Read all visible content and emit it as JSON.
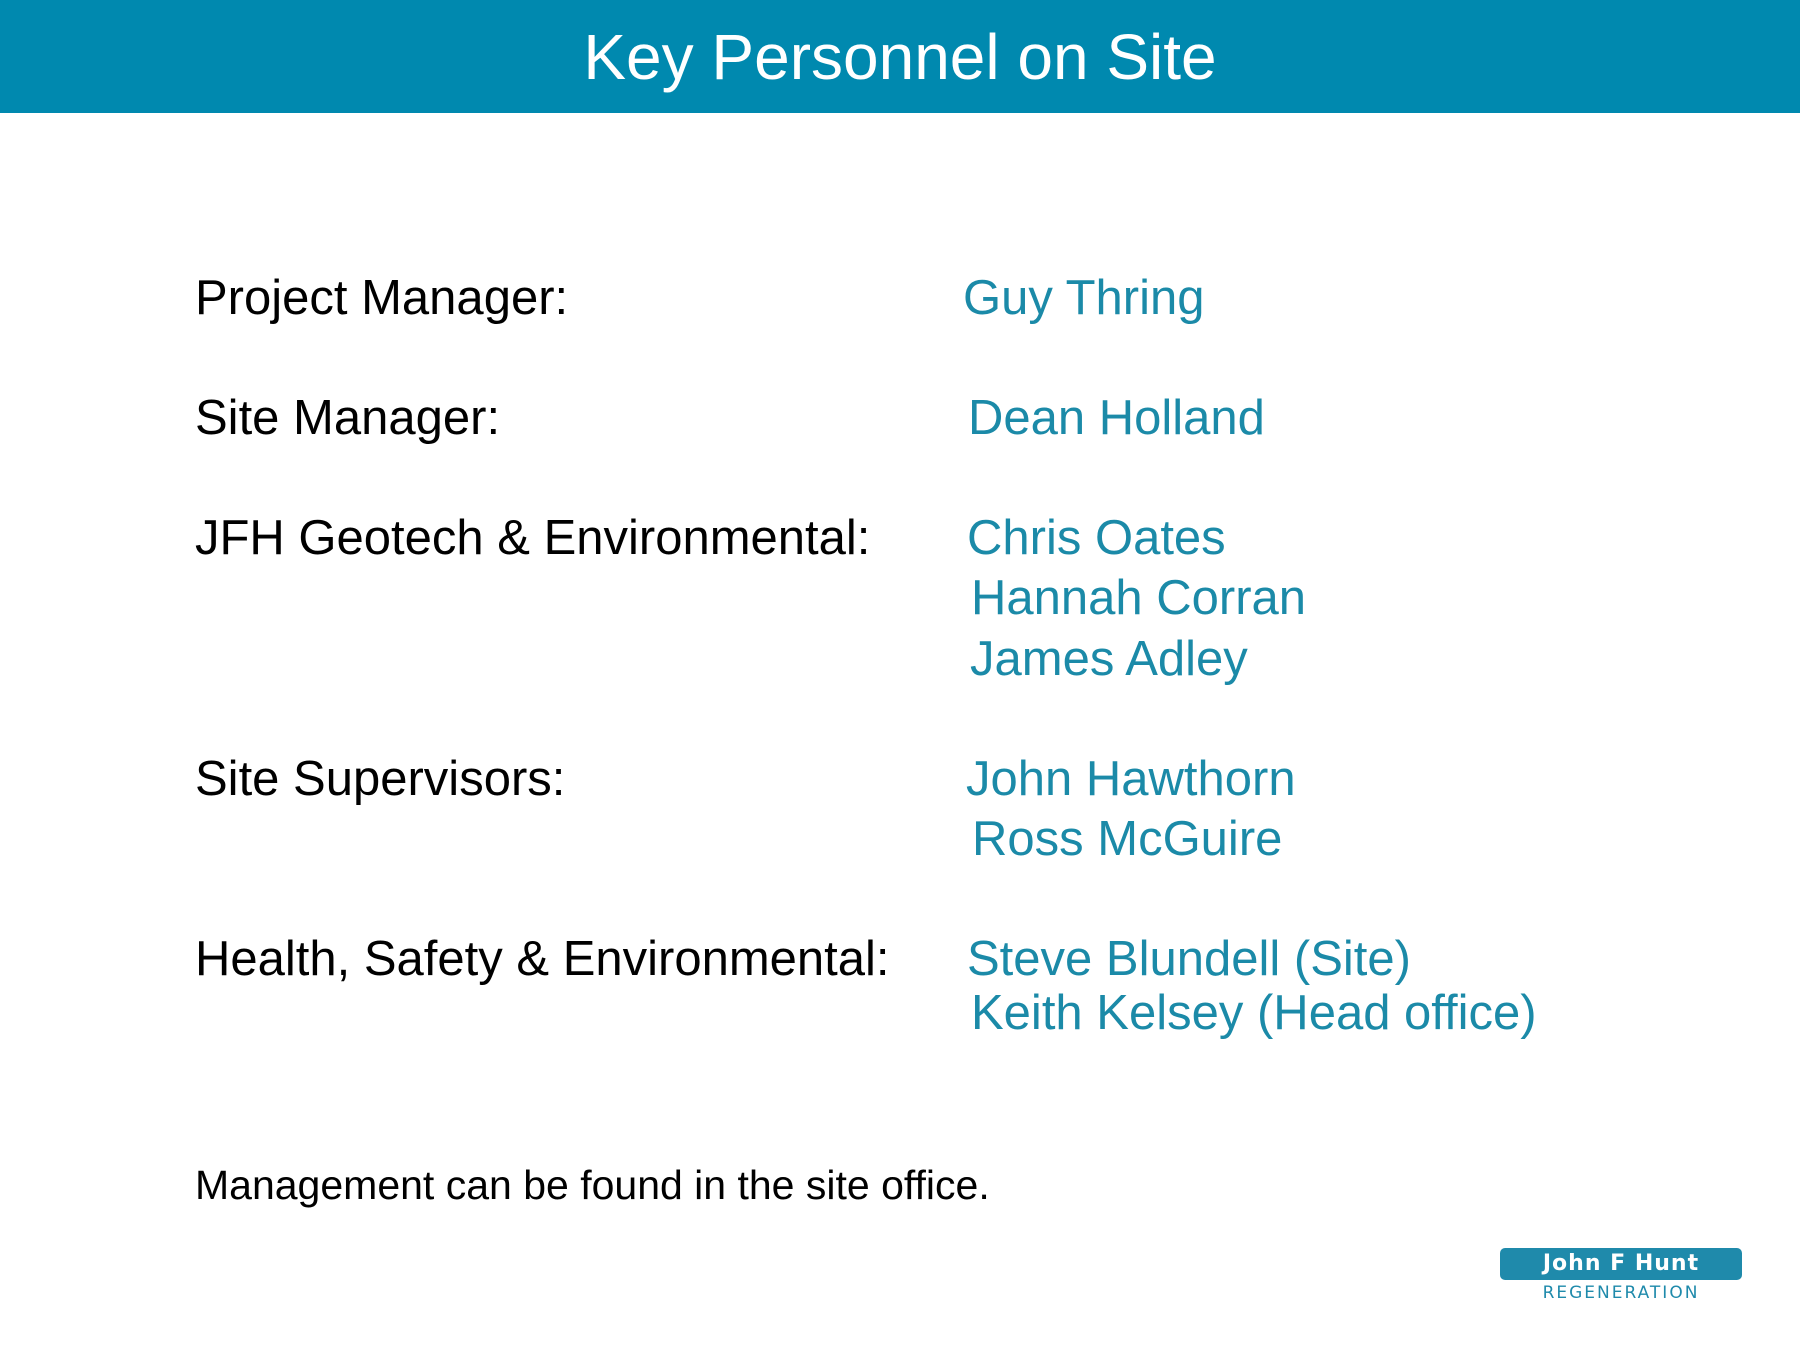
{
  "title": "Key Personnel on Site",
  "roles": [
    {
      "label": "Project Manager:",
      "names": [
        "Guy Thring"
      ]
    },
    {
      "label": "Site Manager:",
      "names": [
        "Dean Holland"
      ]
    },
    {
      "label": "JFH Geotech & Environmental:",
      "names": [
        "Chris Oates",
        "Hannah Corran",
        "James Adley"
      ]
    },
    {
      "label": "Site Supervisors:",
      "names": [
        "John Hawthorn",
        "Ross McGuire"
      ]
    },
    {
      "label": "Health, Safety & Environmental:",
      "names": [
        "Steve Blundell (Site)",
        "Keith Kelsey (Head office)"
      ]
    }
  ],
  "footer_note": "Management can be found in the site office.",
  "logo": {
    "name": "John F Hunt",
    "tagline": "REGENERATION"
  },
  "colors": {
    "title_bar": "#0089af",
    "name_text": "#1b8aa8",
    "logo": "#1f8aab"
  }
}
